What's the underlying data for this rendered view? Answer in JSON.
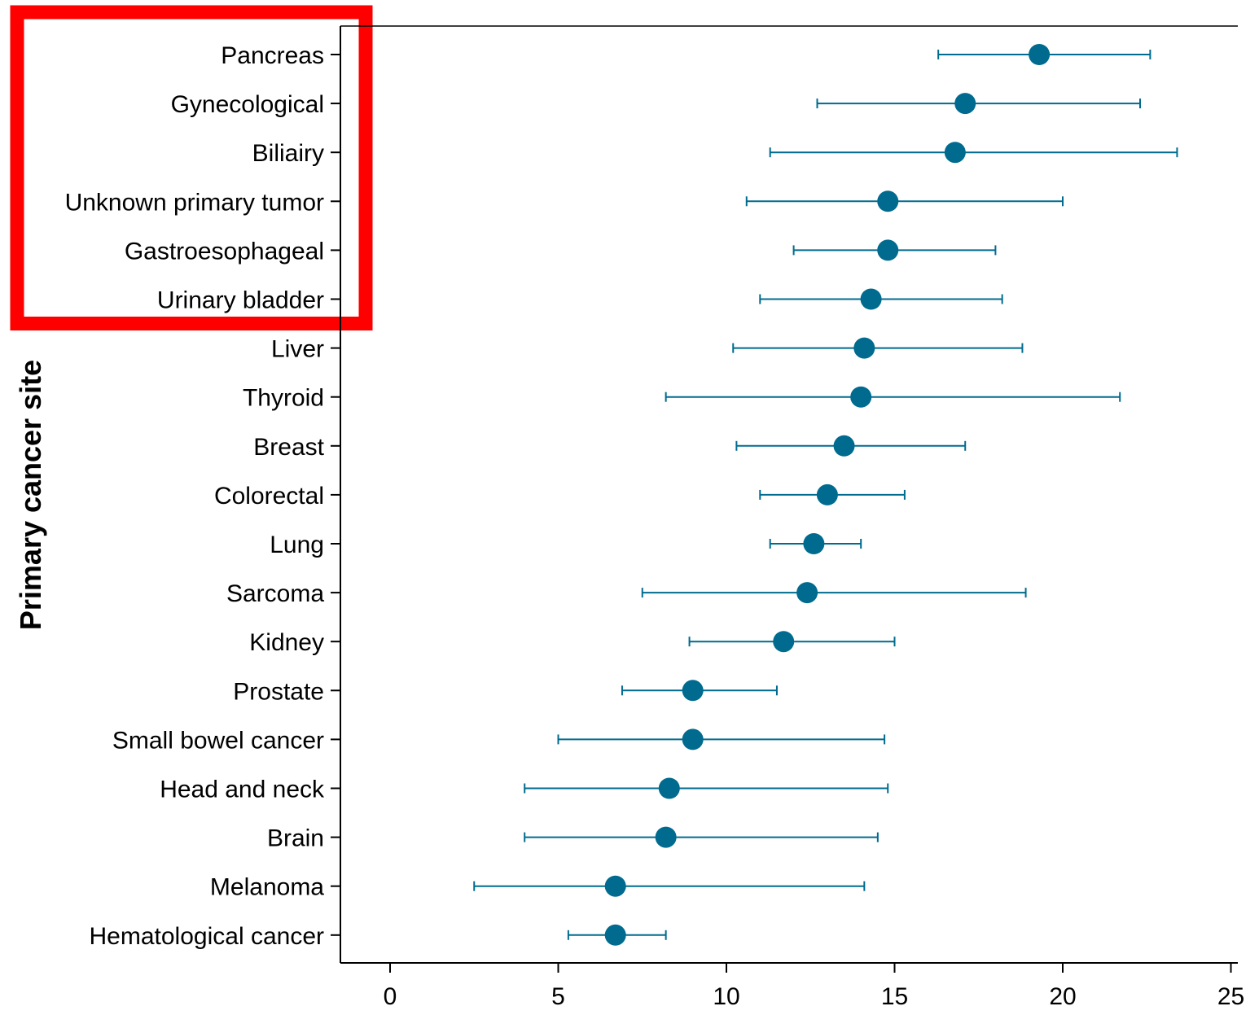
{
  "chart_data": {
    "type": "forest",
    "title": "",
    "xlabel": "",
    "ylabel": "Primary cancer site",
    "xlim": [
      -1.5,
      25.2
    ],
    "x_ticks": [
      0,
      5,
      10,
      15,
      20,
      25
    ],
    "x_tick_labels": [
      "0",
      "5",
      "10",
      "15",
      "20",
      "25"
    ],
    "grid": false,
    "legend": "none",
    "series": [
      {
        "color": "#006b8f",
        "categories": [
          "Pancreas",
          "Gynecological",
          "Biliairy",
          "Unknown primary tumor",
          "Gastroesophageal",
          "Urinary bladder",
          "Liver",
          "Thyroid",
          "Breast",
          "Colorectal",
          "Lung",
          "Sarcoma",
          "Kidney",
          "Prostate",
          "Small bowel cancer",
          "Head and neck",
          "Brain",
          "Melanoma",
          "Hematological cancer"
        ],
        "estimate": [
          19.3,
          17.1,
          16.8,
          14.8,
          14.8,
          14.3,
          14.1,
          14.0,
          13.5,
          13.0,
          12.6,
          12.4,
          11.7,
          9.0,
          9.0,
          8.3,
          8.2,
          6.7,
          6.7
        ],
        "lower": [
          16.3,
          12.7,
          11.3,
          10.6,
          12.0,
          11.0,
          10.2,
          8.2,
          10.3,
          11.0,
          11.3,
          7.5,
          8.9,
          6.9,
          5.0,
          4.0,
          4.0,
          2.5,
          5.3
        ],
        "upper": [
          22.6,
          22.3,
          23.4,
          20.0,
          18.0,
          18.2,
          18.8,
          21.7,
          17.1,
          15.3,
          14.0,
          18.9,
          15.0,
          11.5,
          14.7,
          14.8,
          14.5,
          14.1,
          8.2
        ]
      }
    ],
    "highlight": {
      "shape": "rectangle",
      "color": "#ff0000",
      "categories": [
        "Pancreas",
        "Gynecological",
        "Biliairy",
        "Unknown primary tumor",
        "Gastroesophageal",
        "Urinary bladder"
      ]
    }
  }
}
